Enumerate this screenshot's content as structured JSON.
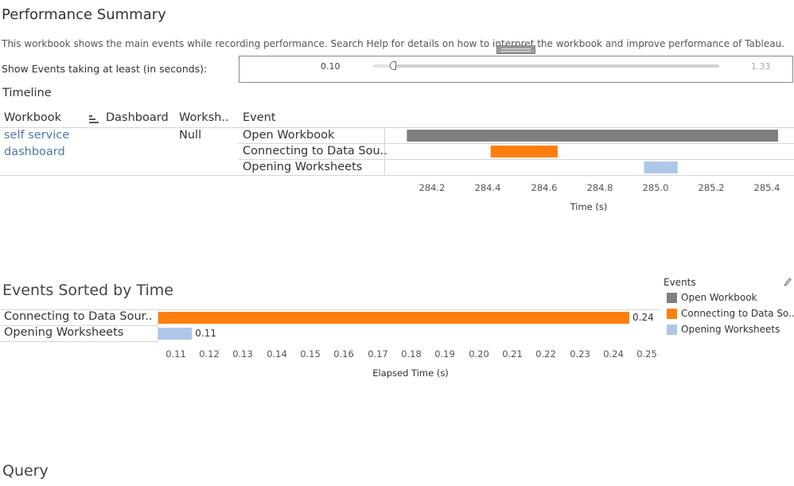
{
  "header": {
    "title": "Performance Summary",
    "description": "This workbook shows the main events while recording performance. Search Help for details on how to interpret the workbook and improve performance of Tableau."
  },
  "filter": {
    "label": "Show Events taking at least (in seconds):",
    "min_label": "0.10",
    "max_label": "1.33",
    "value": 0.1,
    "range": [
      0.1,
      1.33
    ]
  },
  "timeline": {
    "title": "Timeline",
    "columns": {
      "workbook": "Workbook",
      "dashboard": "Dashboard",
      "worksheet": "Worksh..",
      "event": "Event"
    },
    "workbook_line1": "self service",
    "workbook_line2": "dashboard",
    "worksheet_value": "Null",
    "rows": [
      {
        "event": "Open Workbook",
        "start": 284.11,
        "end": 285.44,
        "color": "#7f7f7f"
      },
      {
        "event": "Connecting to Data Sou..",
        "start": 284.41,
        "end": 284.65,
        "color": "#ff7f0e"
      },
      {
        "event": "Opening Worksheets",
        "start": 284.96,
        "end": 285.08,
        "color": "#aec7e8"
      }
    ],
    "axis": {
      "ticks": [
        "284.2",
        "284.4",
        "284.6",
        "284.8",
        "285.0",
        "285.2",
        "285.4"
      ],
      "title": "Time (s)"
    }
  },
  "sorted": {
    "title": "Events Sorted by Time",
    "axis": {
      "ticks": [
        "0.11",
        "0.12",
        "0.13",
        "0.14",
        "0.15",
        "0.16",
        "0.17",
        "0.18",
        "0.19",
        "0.20",
        "0.21",
        "0.22",
        "0.23",
        "0.24",
        "0.25"
      ],
      "title": "Elapsed Time (s)"
    }
  },
  "legend": {
    "title": "Events",
    "items": [
      {
        "label": "Open Workbook",
        "color": "#7f7f7f"
      },
      {
        "label": "Connecting to Data So..",
        "color": "#ff7f0e"
      },
      {
        "label": "Opening Worksheets",
        "color": "#aec7e8"
      }
    ]
  },
  "query": {
    "title": "Query"
  },
  "chart_data": [
    {
      "type": "bar",
      "orientation": "horizontal-gantt",
      "categories": [
        "Open Workbook",
        "Connecting to Data Sou..",
        "Opening Worksheets"
      ],
      "start": [
        284.11,
        284.41,
        284.96
      ],
      "end": [
        285.44,
        284.65,
        285.08
      ],
      "xlabel": "Time (s)",
      "xlim": [
        284.07,
        285.47
      ]
    },
    {
      "type": "bar",
      "orientation": "horizontal",
      "categories": [
        "Connecting to Data Sour..",
        "Opening Worksheets"
      ],
      "values": [
        0.24,
        0.11
      ],
      "value_labels": [
        "0.24",
        "0.11"
      ],
      "colors": [
        "#ff7f0e",
        "#aec7e8"
      ],
      "xlabel": "Elapsed Time (s)",
      "xlim": [
        0.1,
        0.25
      ]
    }
  ]
}
